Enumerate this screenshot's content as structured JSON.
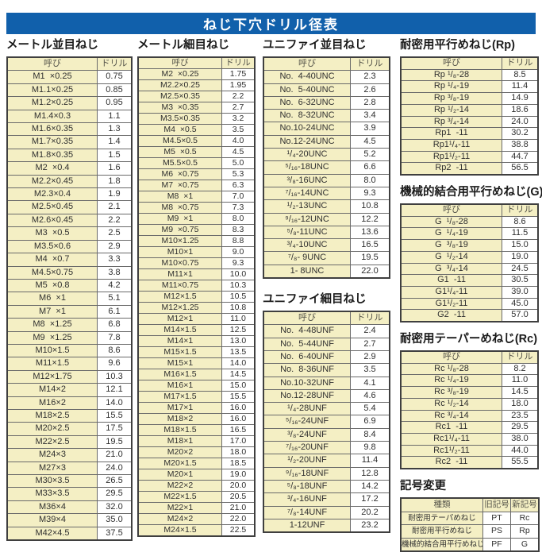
{
  "page_title": "ねじ下穴ドリル径表",
  "column_headers": {
    "name": "呼び",
    "drill": "ドリル"
  },
  "colors": {
    "bar": "#1160ab",
    "cream": "#f4efc4",
    "border_dark": "#3f3f3f",
    "border_light": "#6a6a6a",
    "ink": "#2f2f2f",
    "header_ink": "#55544a",
    "white": "#ffffff",
    "bg": "#ffffff"
  },
  "tables": {
    "metric_coarse": {
      "title": "メートル並目ねじ",
      "rows": [
        [
          "M1  ×0.25",
          "0.75"
        ],
        [
          "M1.1×0.25",
          "0.85"
        ],
        [
          "M1.2×0.25",
          "0.95"
        ],
        [
          "M1.4×0.3",
          "1.1"
        ],
        [
          "M1.6×0.35",
          "1.3"
        ],
        [
          "M1.7×0.35",
          "1.4"
        ],
        [
          "M1.8×0.35",
          "1.5"
        ],
        [
          "M2  ×0.4",
          "1.6"
        ],
        [
          "M2.2×0.45",
          "1.8"
        ],
        [
          "M2.3×0.4",
          "1.9"
        ],
        [
          "M2.5×0.45",
          "2.1"
        ],
        [
          "M2.6×0.45",
          "2.2"
        ],
        [
          "M3  ×0.5",
          "2.5"
        ],
        [
          "M3.5×0.6",
          "2.9"
        ],
        [
          "M4  ×0.7",
          "3.3"
        ],
        [
          "M4.5×0.75",
          "3.8"
        ],
        [
          "M5  ×0.8",
          "4.2"
        ],
        [
          "M6  ×1",
          "5.1"
        ],
        [
          "M7  ×1",
          "6.1"
        ],
        [
          "M8  ×1.25",
          "6.8"
        ],
        [
          "M9  ×1.25",
          "7.8"
        ],
        [
          "M10×1.5",
          "8.6"
        ],
        [
          "M11×1.5",
          "9.6"
        ],
        [
          "M12×1.75",
          "10.3"
        ],
        [
          "M14×2",
          "12.1"
        ],
        [
          "M16×2",
          "14.0"
        ],
        [
          "M18×2.5",
          "15.5"
        ],
        [
          "M20×2.5",
          "17.5"
        ],
        [
          "M22×2.5",
          "19.5"
        ],
        [
          "M24×3",
          "21.0"
        ],
        [
          "M27×3",
          "24.0"
        ],
        [
          "M30×3.5",
          "26.5"
        ],
        [
          "M33×3.5",
          "29.5"
        ],
        [
          "M36×4",
          "32.0"
        ],
        [
          "M39×4",
          "35.0"
        ],
        [
          "M42×4.5",
          "37.5"
        ]
      ]
    },
    "metric_fine": {
      "title": "メートル細目ねじ",
      "rows": [
        [
          "M2  ×0.25",
          "1.75"
        ],
        [
          "M2.2×0.25",
          "1.95"
        ],
        [
          "M2.5×0.35",
          "2.2"
        ],
        [
          "M3  ×0.35",
          "2.7"
        ],
        [
          "M3.5×0.35",
          "3.2"
        ],
        [
          "M4  ×0.5",
          "3.5"
        ],
        [
          "M4.5×0.5",
          "4.0"
        ],
        [
          "M5  ×0.5",
          "4.5"
        ],
        [
          "M5.5×0.5",
          "5.0"
        ],
        [
          "M6  ×0.75",
          "5.3"
        ],
        [
          "M7  ×0.75",
          "6.3"
        ],
        [
          "M8  ×1",
          "7.0"
        ],
        [
          "M8  ×0.75",
          "7.3"
        ],
        [
          "M9  ×1",
          "8.0"
        ],
        [
          "M9  ×0.75",
          "8.3"
        ],
        [
          "M10×1.25",
          "8.8"
        ],
        [
          "M10×1",
          "9.0"
        ],
        [
          "M10×0.75",
          "9.3"
        ],
        [
          "M11×1",
          "10.0"
        ],
        [
          "M11×0.75",
          "10.3"
        ],
        [
          "M12×1.5",
          "10.5"
        ],
        [
          "M12×1.25",
          "10.8"
        ],
        [
          "M12×1",
          "11.0"
        ],
        [
          "M14×1.5",
          "12.5"
        ],
        [
          "M14×1",
          "13.0"
        ],
        [
          "M15×1.5",
          "13.5"
        ],
        [
          "M15×1",
          "14.0"
        ],
        [
          "M16×1.5",
          "14.5"
        ],
        [
          "M16×1",
          "15.0"
        ],
        [
          "M17×1.5",
          "15.5"
        ],
        [
          "M17×1",
          "16.0"
        ],
        [
          "M18×2",
          "16.0"
        ],
        [
          "M18×1.5",
          "16.5"
        ],
        [
          "M18×1",
          "17.0"
        ],
        [
          "M20×2",
          "18.0"
        ],
        [
          "M20×1.5",
          "18.5"
        ],
        [
          "M20×1",
          "19.0"
        ],
        [
          "M22×2",
          "20.0"
        ],
        [
          "M22×1.5",
          "20.5"
        ],
        [
          "M22×1",
          "21.0"
        ],
        [
          "M24×2",
          "22.0"
        ],
        [
          "M24×1.5",
          "22.5"
        ]
      ]
    },
    "unified_coarse": {
      "title": "ユニファイ並目ねじ",
      "rows": [
        [
          "No.  4-40UNC",
          "2.3"
        ],
        [
          "No.  5-40UNC",
          "2.6"
        ],
        [
          "No.  6-32UNC",
          "2.8"
        ],
        [
          "No.  8-32UNC",
          "3.4"
        ],
        [
          "No.10-24UNC",
          "3.9"
        ],
        [
          "No.12-24UNC",
          "4.5"
        ],
        [
          "¹/₄-20UNC",
          "5.2"
        ],
        [
          "⁵/₁₆-18UNC",
          "6.6"
        ],
        [
          "³/₈-16UNC",
          "8.0"
        ],
        [
          "⁷/₁₆-14UNC",
          "9.3"
        ],
        [
          "¹/₂-13UNC",
          "10.8"
        ],
        [
          "⁹/₁₆-12UNC",
          "12.2"
        ],
        [
          "⁵/₈-11UNC",
          "13.6"
        ],
        [
          "³/₄-10UNC",
          "16.5"
        ],
        [
          "⁷/₈- 9UNC",
          "19.5"
        ],
        [
          "1- 8UNC",
          "22.0"
        ]
      ]
    },
    "unified_fine": {
      "title": "ユニファイ細目ねじ",
      "rows": [
        [
          "No.  4-48UNF",
          "2.4"
        ],
        [
          "No.  5-44UNF",
          "2.7"
        ],
        [
          "No.  6-40UNF",
          "2.9"
        ],
        [
          "No.  8-36UNF",
          "3.5"
        ],
        [
          "No.10-32UNF",
          "4.1"
        ],
        [
          "No.12-28UNF",
          "4.6"
        ],
        [
          "¹/₄-28UNF",
          "5.4"
        ],
        [
          "⁵/₁₆-24UNF",
          "6.9"
        ],
        [
          "³/₈-24UNF",
          "8.4"
        ],
        [
          "⁷/₁₆-20UNF",
          "9.8"
        ],
        [
          "¹/₂-20UNF",
          "11.4"
        ],
        [
          "⁹/₁₆-18UNF",
          "12.8"
        ],
        [
          "⁵/₈-18UNF",
          "14.2"
        ],
        [
          "³/₄-16UNF",
          "17.2"
        ],
        [
          "⁷/₈-14UNF",
          "20.2"
        ],
        [
          "1-12UNF",
          "23.2"
        ]
      ]
    },
    "rp": {
      "title": "耐密用平行めねじ(Rp)",
      "rows": [
        [
          "Rp ¹/₈-28",
          "8.5"
        ],
        [
          "Rp ¹/₄-19",
          "11.4"
        ],
        [
          "Rp ³/₈-19",
          "14.9"
        ],
        [
          "Rp ¹/₂-14",
          "18.6"
        ],
        [
          "Rp ³/₄-14",
          "24.0"
        ],
        [
          "Rp1  -11",
          "30.2"
        ],
        [
          "Rp1¹/₄-11",
          "38.8"
        ],
        [
          "Rp1¹/₂-11",
          "44.7"
        ],
        [
          "Rp2  -11",
          "56.5"
        ]
      ]
    },
    "g": {
      "title": "機械的結合用平行めねじ(G)",
      "rows": [
        [
          "G  ¹/₈-28",
          "8.6"
        ],
        [
          "G  ¹/₄-19",
          "11.5"
        ],
        [
          "G  ³/₈-19",
          "15.0"
        ],
        [
          "G  ¹/₂-14",
          "19.0"
        ],
        [
          "G  ³/₄-14",
          "24.5"
        ],
        [
          "G1  -11",
          "30.5"
        ],
        [
          "G1¹/₄-11",
          "39.0"
        ],
        [
          "G1¹/₂-11",
          "45.0"
        ],
        [
          "G2  -11",
          "57.0"
        ]
      ]
    },
    "rc": {
      "title": "耐密用テーパーめねじ(Rc)",
      "rows": [
        [
          "Rc ¹/₈-28",
          "8.2"
        ],
        [
          "Rc ¹/₄-19",
          "11.0"
        ],
        [
          "Rc ³/₈-19",
          "14.5"
        ],
        [
          "Rc ¹/₂-14",
          "18.0"
        ],
        [
          "Rc ³/₄-14",
          "23.5"
        ],
        [
          "Rc1  -11",
          "29.5"
        ],
        [
          "Rc1¹/₄-11",
          "38.0"
        ],
        [
          "Rc1¹/₂-11",
          "44.0"
        ],
        [
          "Rc2  -11",
          "55.5"
        ]
      ]
    }
  },
  "symbol_change": {
    "title": "記号変更",
    "headers": [
      "種類",
      "旧記号",
      "新記号"
    ],
    "rows": [
      [
        "耐密用テーパめねじ",
        "PT",
        "Rc"
      ],
      [
        "耐密用平行めねじ",
        "PS",
        "Rp"
      ],
      [
        "機械的結合用平行めねじ",
        "PF",
        "G"
      ]
    ]
  }
}
